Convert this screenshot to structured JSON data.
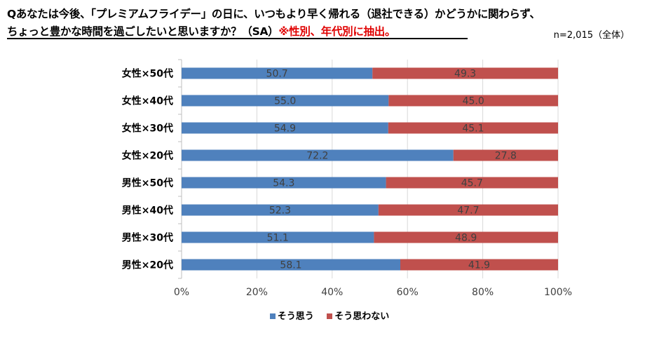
{
  "title": {
    "line1": "Qあなたは今後、「プレミアムフライデー」の日に、いつもより早く帰れる（退社できる）かどうかに関わらず、",
    "line2": "ちょっと豊かな時間を過ごしたいと思いますか？（SA）",
    "line2_highlight": "※性別、年代別に抽出。"
  },
  "sample_size": "n=2,015（全体）",
  "colors": {
    "yes": "#4f81bd",
    "no": "#c0504d",
    "grid": "#d9d9d9",
    "axis": "#bfbfbf"
  },
  "chart_data": {
    "type": "bar",
    "orientation": "horizontal",
    "stacked": true,
    "percent_stacked": true,
    "categories": [
      "女性×50代",
      "女性×40代",
      "女性×30代",
      "女性×20代",
      "男性×50代",
      "男性×40代",
      "男性×30代",
      "男性×20代"
    ],
    "series": [
      {
        "name": "そう思う",
        "values": [
          50.7,
          55.0,
          54.9,
          72.2,
          54.3,
          52.3,
          51.1,
          58.1
        ]
      },
      {
        "name": "そう思わない",
        "values": [
          49.3,
          45.0,
          45.1,
          27.8,
          45.7,
          47.7,
          48.9,
          41.9
        ]
      }
    ],
    "xlim": [
      0,
      100
    ],
    "x_ticks": [
      "0%",
      "20%",
      "40%",
      "60%",
      "80%",
      "100%"
    ],
    "grid": true,
    "legend_position": "bottom"
  }
}
